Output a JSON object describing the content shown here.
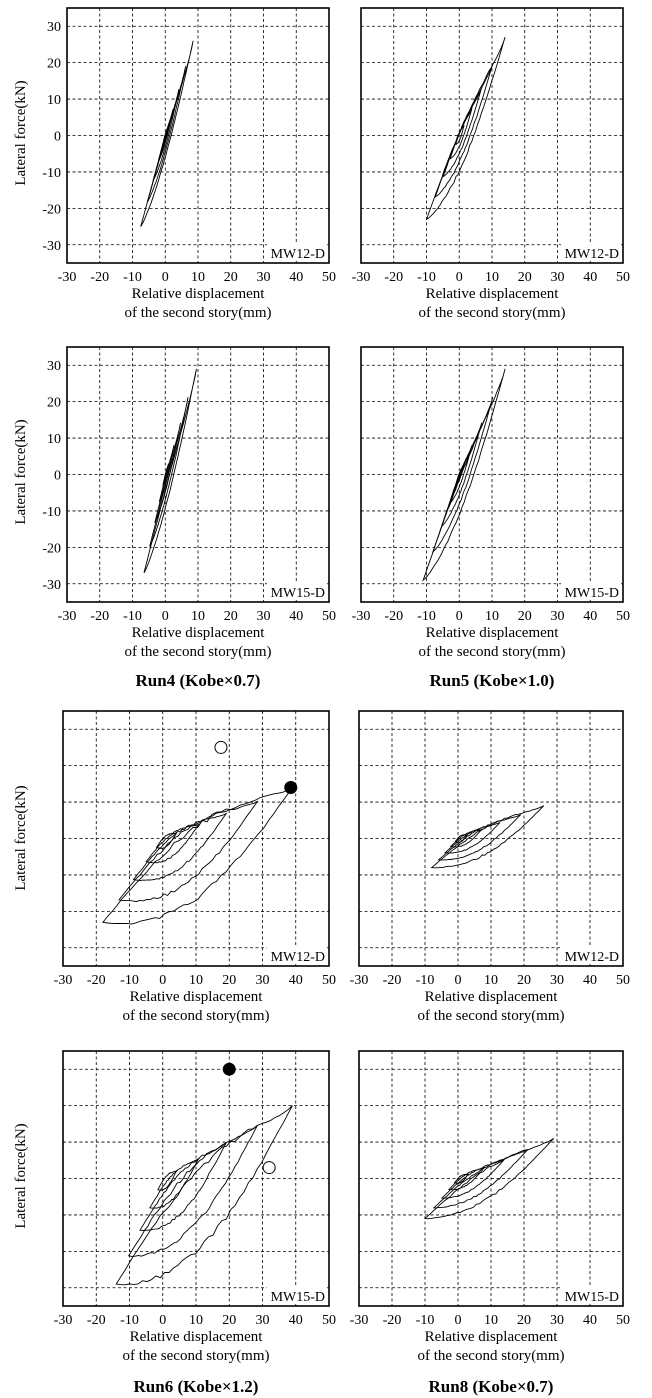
{
  "chart_data": [
    {
      "type": "line",
      "tag": "MW12-D",
      "ylabel": "Lateral force(kN)",
      "xlabel": "Relative displacement",
      "xlabel2": "of the second story(mm)",
      "xlim": [
        -30,
        50
      ],
      "ylim": [
        -35,
        35
      ],
      "xticks": [
        -30,
        -20,
        -10,
        0,
        10,
        20,
        30,
        40,
        50
      ],
      "yticks": [
        30,
        20,
        10,
        0,
        -10,
        -20,
        -30
      ],
      "envelope": {
        "pos": [
          8.5,
          26
        ],
        "neg": [
          -7.5,
          -25
        ],
        "width": 3.5
      },
      "markers": []
    },
    {
      "type": "line",
      "tag": "MW12-D",
      "ylabel": "",
      "xlabel": "Relative displacement",
      "xlabel2": "of the second story(mm)",
      "xlim": [
        -30,
        50
      ],
      "ylim": [
        -35,
        35
      ],
      "xticks": [
        -30,
        -20,
        -10,
        0,
        10,
        20,
        30,
        40,
        50
      ],
      "yticks": [],
      "envelope": {
        "pos": [
          14,
          27
        ],
        "neg": [
          -10,
          -23
        ],
        "width": 9
      },
      "markers": []
    },
    {
      "type": "line",
      "tag": "MW15-D",
      "ylabel": "Lateral force(kN)",
      "xlabel": "Relative displacement",
      "xlabel2": "of the second story(mm)",
      "caption": "Run4 (Kobe×0.7)",
      "xlim": [
        -30,
        50
      ],
      "ylim": [
        -35,
        35
      ],
      "xticks": [
        -30,
        -20,
        -10,
        0,
        10,
        20,
        30,
        40,
        50
      ],
      "yticks": [
        30,
        20,
        10,
        0,
        -10,
        -20,
        -30
      ],
      "envelope": {
        "pos": [
          9.5,
          29
        ],
        "neg": [
          -6.5,
          -27
        ],
        "width": 3.5
      },
      "markers": []
    },
    {
      "type": "line",
      "tag": "MW15-D",
      "ylabel": "",
      "xlabel": "Relative displacement",
      "xlabel2": "of the second story(mm)",
      "caption": "Run5 (Kobe×1.0)",
      "xlim": [
        -30,
        50
      ],
      "ylim": [
        -35,
        35
      ],
      "xticks": [
        -30,
        -20,
        -10,
        0,
        10,
        20,
        30,
        40,
        50
      ],
      "yticks": [],
      "envelope": {
        "pos": [
          14,
          29
        ],
        "neg": [
          -11,
          -29
        ],
        "width": 8
      },
      "markers": []
    },
    {
      "type": "line",
      "tag": "MW12-D",
      "ylabel": "Lateral force(kN)",
      "xlabel": "Relative displacement",
      "xlabel2": "of the second story(mm)",
      "xlim": [
        -30,
        50
      ],
      "ylim": [
        -35,
        35
      ],
      "xticks": [
        -30,
        -20,
        -10,
        0,
        10,
        20,
        30,
        40,
        50
      ],
      "yticks": [],
      "envelope": {
        "pos": [
          39,
          14
        ],
        "neg": [
          -18,
          -23
        ],
        "width": 18
      },
      "markers": [
        {
          "x": 17.5,
          "y": 25,
          "filled": false
        },
        {
          "x": 38.5,
          "y": 14,
          "filled": true
        }
      ]
    },
    {
      "type": "line",
      "tag": "MW12-D",
      "ylabel": "",
      "xlabel": "Relative displacement",
      "xlabel2": "of the second story(mm)",
      "xlim": [
        -30,
        50
      ],
      "ylim": [
        -35,
        35
      ],
      "xticks": [
        -30,
        -20,
        -10,
        0,
        10,
        20,
        30,
        40,
        50
      ],
      "yticks": [],
      "envelope": {
        "pos": [
          26,
          9
        ],
        "neg": [
          -8,
          -8
        ],
        "width": 6
      },
      "markers": []
    },
    {
      "type": "line",
      "tag": "MW15-D",
      "ylabel": "Lateral force(kN)",
      "xlabel": "Relative displacement",
      "xlabel2": "of the second story(mm)",
      "caption": "Run6 (Kobe×1.2)",
      "xlim": [
        -30,
        50
      ],
      "ylim": [
        -35,
        35
      ],
      "xticks": [
        -30,
        -20,
        -10,
        0,
        10,
        20,
        30,
        40,
        50
      ],
      "yticks": [],
      "envelope": {
        "pos": [
          39,
          20
        ],
        "neg": [
          -14,
          -29
        ],
        "width": 20
      },
      "markers": [
        {
          "x": 20,
          "y": 30,
          "filled": true
        },
        {
          "x": 32,
          "y": 3,
          "filled": false
        }
      ]
    },
    {
      "type": "line",
      "tag": "MW15-D",
      "ylabel": "",
      "xlabel": "Relative displacement",
      "xlabel2": "of the second story(mm)",
      "caption": "Run8 (Kobe×0.7)",
      "xlim": [
        -30,
        50
      ],
      "ylim": [
        -35,
        35
      ],
      "xticks": [
        -30,
        -20,
        -10,
        0,
        10,
        20,
        30,
        40,
        50
      ],
      "yticks": [],
      "envelope": {
        "pos": [
          29,
          11
        ],
        "neg": [
          -10,
          -11
        ],
        "width": 7
      },
      "markers": []
    }
  ]
}
